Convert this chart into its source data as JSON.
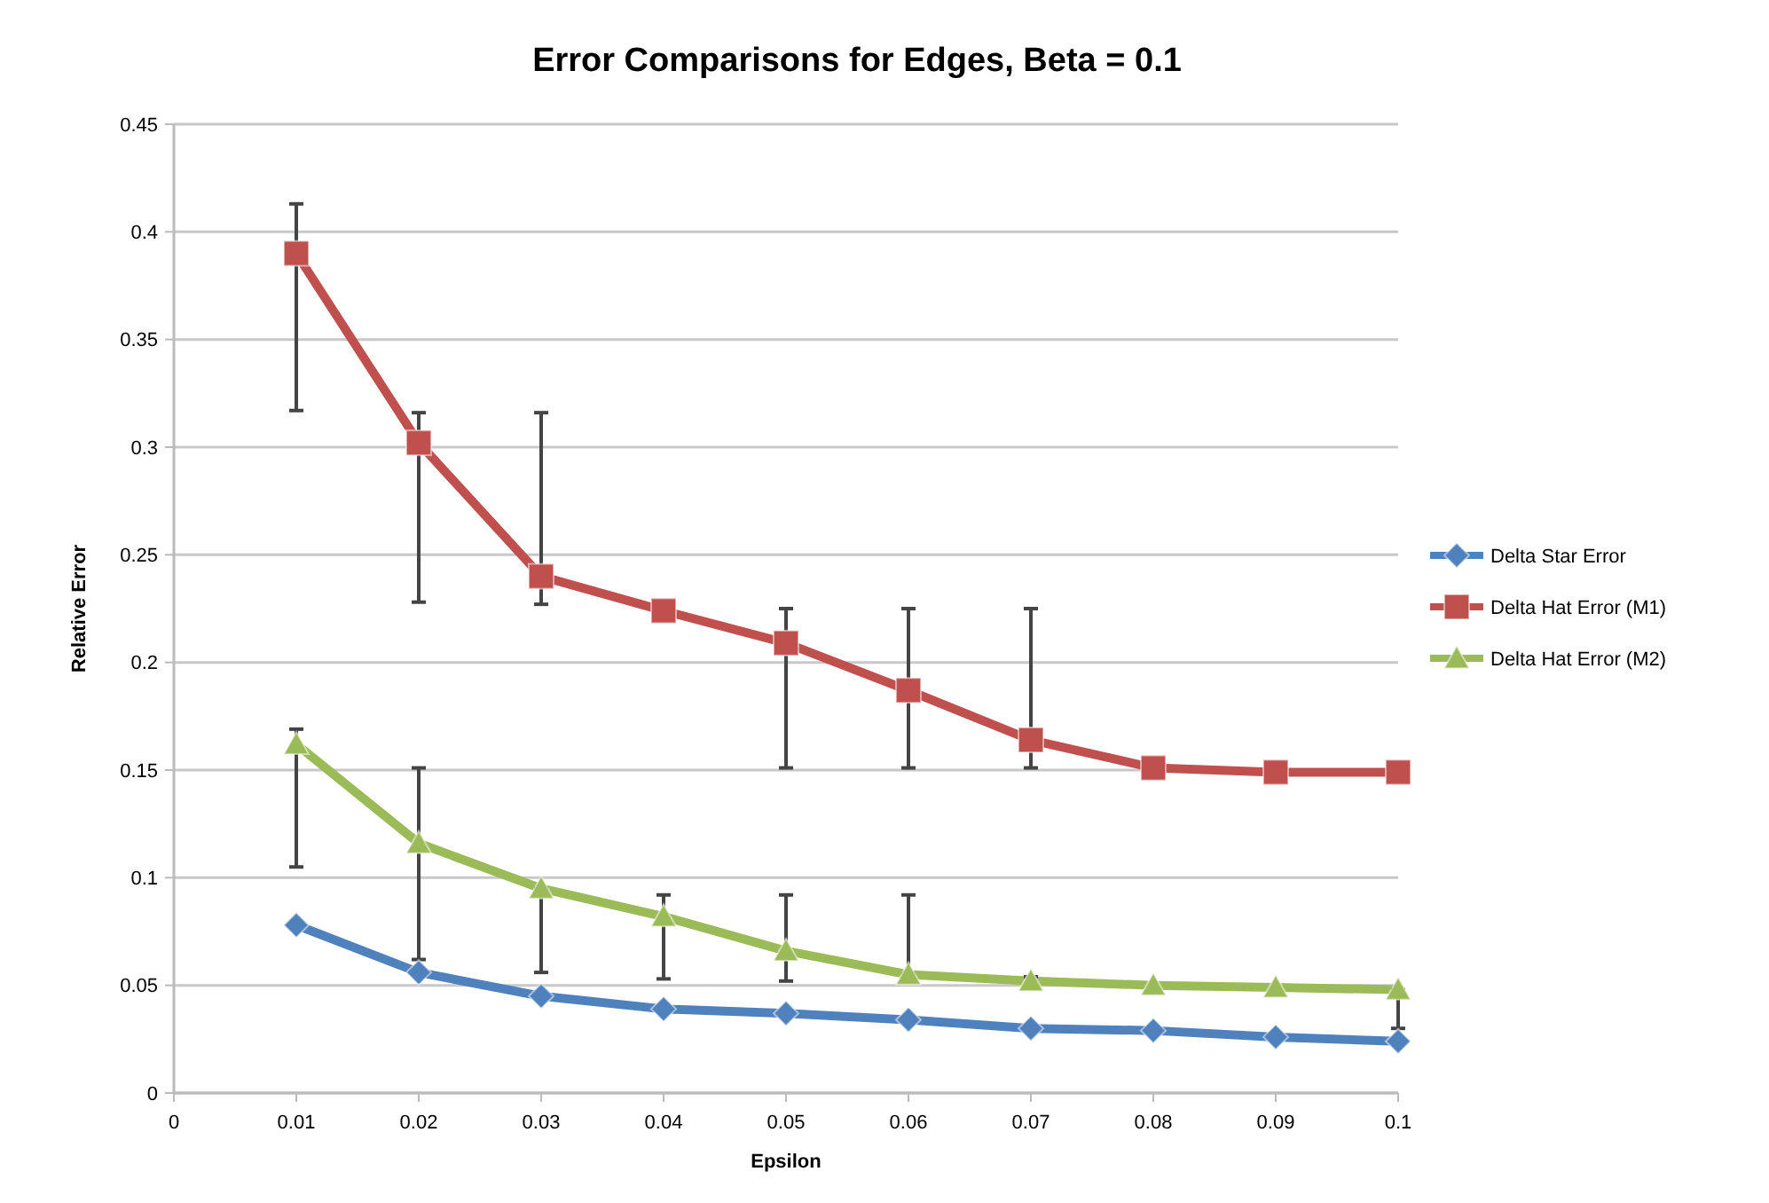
{
  "chart_data": {
    "type": "line",
    "title": "Error Comparisons for Edges, Beta = 0.1",
    "xlabel": "Epsilon",
    "ylabel": "Relative Error",
    "x": [
      0.01,
      0.02,
      0.03,
      0.04,
      0.05,
      0.06,
      0.07,
      0.08,
      0.09,
      0.1
    ],
    "xlim": [
      0,
      0.1
    ],
    "xticks": [
      0,
      0.01,
      0.02,
      0.03,
      0.04,
      0.05,
      0.06,
      0.07,
      0.08,
      0.09,
      0.1
    ],
    "ylim": [
      0,
      0.45
    ],
    "yticks": [
      0,
      0.05,
      0.1,
      0.15,
      0.2,
      0.25,
      0.3,
      0.35,
      0.4,
      0.45
    ],
    "grid": "y",
    "legend": "right",
    "series": [
      {
        "name": "Delta Star Error",
        "color": "#4f81bd",
        "marker": "diamond",
        "values": [
          0.078,
          0.056,
          0.045,
          0.039,
          0.037,
          0.034,
          0.03,
          0.029,
          0.026,
          0.024
        ]
      },
      {
        "name": "Delta Hat Error (M1)",
        "color": "#c0504d",
        "marker": "square",
        "values": [
          0.39,
          0.302,
          0.24,
          0.224,
          0.209,
          0.187,
          0.164,
          0.151,
          0.149,
          0.149
        ],
        "errors": [
          [
            0.317,
            0.413
          ],
          [
            0.228,
            0.316
          ],
          [
            0.227,
            0.316
          ],
          null,
          [
            0.151,
            0.225
          ],
          [
            0.151,
            0.225
          ],
          [
            0.151,
            0.225
          ],
          null,
          null,
          null
        ]
      },
      {
        "name": "Delta Hat Error (M2)",
        "color": "#9bbb59",
        "marker": "triangle",
        "values": [
          0.162,
          0.116,
          0.095,
          0.082,
          0.066,
          0.055,
          0.052,
          0.05,
          0.049,
          0.048
        ],
        "errors": [
          [
            0.105,
            0.169
          ],
          [
            0.062,
            0.151
          ],
          [
            0.056,
            0.095
          ],
          [
            0.053,
            0.092
          ],
          [
            0.052,
            0.092
          ],
          [
            0.055,
            0.092
          ],
          [
            0.051,
            0.054
          ],
          null,
          null,
          [
            0.03,
            0.048
          ]
        ]
      }
    ]
  }
}
